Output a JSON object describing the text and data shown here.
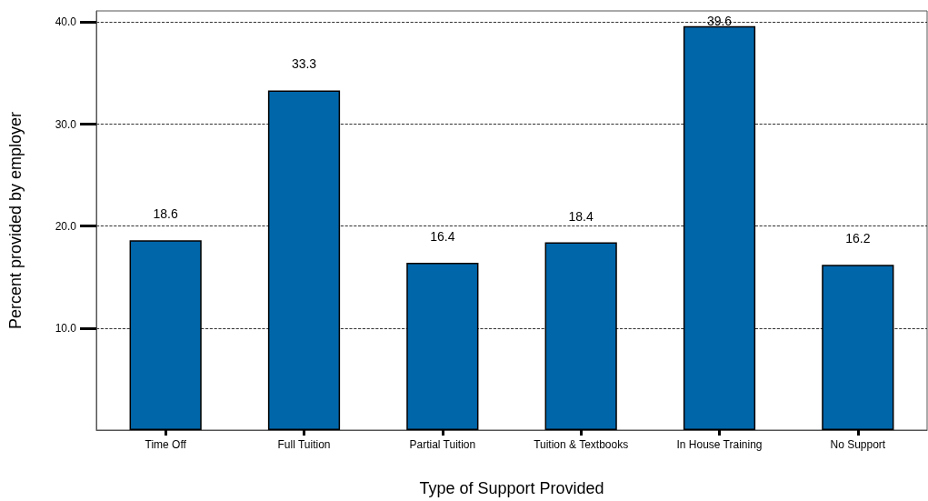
{
  "chart_data": {
    "type": "bar",
    "xlabel": "Type of Support Provided",
    "ylabel": "Percent provided by employer",
    "categories": [
      "Time Off",
      "Full Tuition",
      "Partial Tuition",
      "Tuition & Textbooks",
      "In House Training",
      "No Support"
    ],
    "values": [
      18.6,
      33.3,
      16.4,
      18.4,
      39.6,
      16.2
    ],
    "color": "#0066aa",
    "ylim": [
      0,
      41.1
    ],
    "yticks": [
      {
        "value": 10,
        "label": "10.0"
      },
      {
        "value": 20,
        "label": "20.0"
      },
      {
        "value": 30,
        "label": "30.0"
      },
      {
        "value": 40,
        "label": "40.0"
      }
    ],
    "grid": "y",
    "data_labels": true
  }
}
